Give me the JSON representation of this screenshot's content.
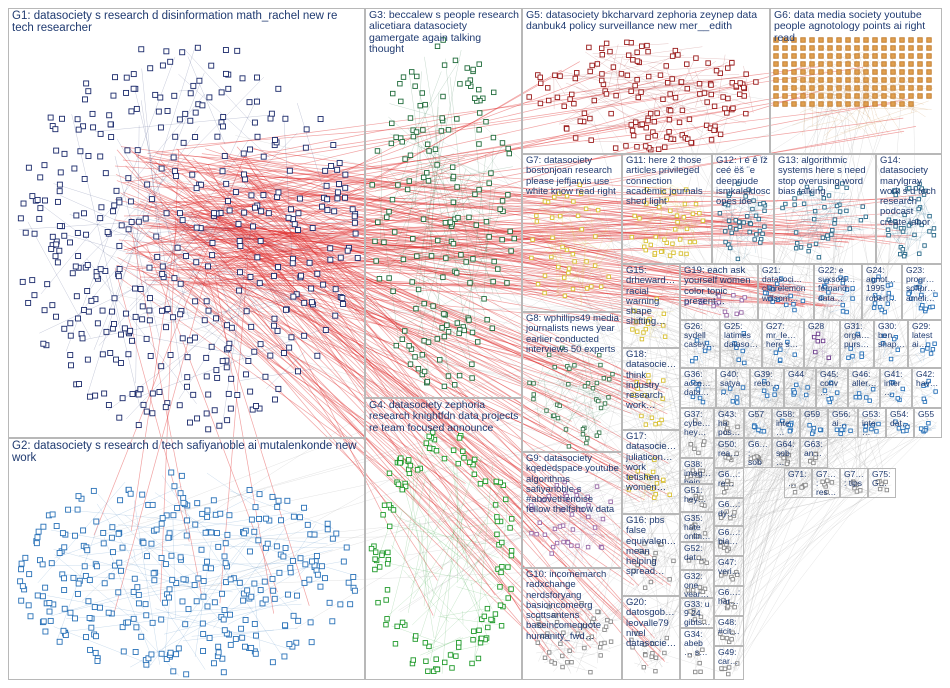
{
  "groups": [
    {
      "id": "G1",
      "label": "G1: datasociety s research d disinformation math_rachel new re tech researcher",
      "color": "#1b2a6b"
    },
    {
      "id": "G2",
      "label": "G2: datasociety s research d tech safiyanoble ai mutalenkonde new work",
      "color": "#2a72b8"
    },
    {
      "id": "G3",
      "label": "G3: beccalew s people research alicetiara datasociety gamergate again talking thought",
      "color": "#1f6b3a"
    },
    {
      "id": "G4",
      "label": "G4: datasociety zephoria research knightfdn data projects re team focused announce",
      "color": "#1f9a2a"
    },
    {
      "id": "G5",
      "label": "G5: datasociety bkcharvard zephoria zeynep data danbuk4 policy surveillance new mer__edith",
      "color": "#9a1a1a"
    },
    {
      "id": "G6",
      "label": "G6: data media society youtube people agnotology points ai right read",
      "color": "#c07a2a"
    },
    {
      "id": "G7",
      "label": "G7: datasociety bostonjoan research please jeffjarvis use white know read right",
      "color": "#d8c030"
    },
    {
      "id": "G8",
      "label": "G8: wphillips49 media journalists news year earlier conducted interviews 50 experts",
      "color": "#3a7a50"
    },
    {
      "id": "G9",
      "label": "G9: datasociety kqededspace youtube algorithms safiyanoble s #abovethenoise fellow thelfshow data",
      "color": "#9a6aa8"
    },
    {
      "id": "G10",
      "label": "G10: incomemarch radxchange nerdsforyang basicincomeorg scottsantens baseincomequote humanity_fwd…",
      "color": "#8a8a8a"
    },
    {
      "id": "G11",
      "label": "G11: here 2 those articles privileged connection academic journals shed light",
      "color": "#d8c030"
    },
    {
      "id": "G12",
      "label": "G12: ì é ê ĭž ceé ëš ¨e deepriude ismkaleidoscopes ioe",
      "color": "#2a6a8a"
    },
    {
      "id": "G13",
      "label": "G13: algorithmic systems here s need stop overusing word bias talking",
      "color": "#2a6a8a"
    },
    {
      "id": "G14",
      "label": "G14: datasociety marylgray work s d tech research podcast create labor",
      "color": "#2a6a8a"
    },
    {
      "id": "G15",
      "label": "G15: drheward… racial warning shape shifting…",
      "color": "#d8c030"
    },
    {
      "id": "G16",
      "label": "G16: pbs false equivalen… mean helping spread…",
      "color": "#8a8a8a"
    },
    {
      "id": "G17",
      "label": "G17: datasocie… juliaticon… work tetishen women…",
      "color": "#d8c030"
    },
    {
      "id": "G18",
      "label": "G18: datasocie… think industry research work…",
      "color": "#d8c030"
    },
    {
      "id": "G19",
      "label": "G19: each ask yourself women color topic present…",
      "color": "#9a6aa8"
    },
    {
      "id": "G20",
      "label": "G20: datosgob… leovalle79 nivel datasocie…",
      "color": "#8a8a8a"
    },
    {
      "id": "G21",
      "label": "G21: datasoci… clairelemon willsom…",
      "color": "#2a72b8"
    },
    {
      "id": "G22",
      "label": "G22: e suxsoni… fernand… data…",
      "color": "#2a72b8"
    },
    {
      "id": "G23",
      "label": "G23: progr… softpr… ameli…",
      "color": "#2a72b8"
    },
    {
      "id": "G24",
      "label": "G24: agnot… 1995 robert…",
      "color": "#2a72b8"
    },
    {
      "id": "G25",
      "label": "G25: latimes dataso…",
      "color": "#2a72b8"
    },
    {
      "id": "G26",
      "label": "G26: sydell casey…",
      "color": "#2a72b8"
    },
    {
      "id": "G27",
      "label": "G27: mr_le… here s…",
      "color": "#2a72b8"
    },
    {
      "id": "G28",
      "label": "G28",
      "color": "#6a3a8a"
    },
    {
      "id": "G29",
      "label": "G29: latest ai…",
      "color": "#2a72b8"
    },
    {
      "id": "G30",
      "label": "G30: ben shap…",
      "color": "#2a72b8"
    },
    {
      "id": "G31",
      "label": "G31: orga… purs…",
      "color": "#2a72b8"
    },
    {
      "id": "G32",
      "label": "G32: one year…",
      "color": "#8a8a8a"
    },
    {
      "id": "G33",
      "label": "G33: u 9 24 gibts…",
      "color": "#8a8a8a"
    },
    {
      "id": "G34",
      "label": "G34: abeb… s…",
      "color": "#8a8a8a"
    },
    {
      "id": "G35",
      "label": "G35: hate onlin…",
      "color": "#8a8a8a"
    },
    {
      "id": "G36",
      "label": "G36: acce… data…",
      "color": "#2a72b8"
    },
    {
      "id": "G37",
      "label": "G37: cybe… hey…",
      "color": "#8a8a8a"
    },
    {
      "id": "G38",
      "label": "G38: imag… bein…",
      "color": "#8a8a8a"
    },
    {
      "id": "G39",
      "label": "G39: reco…",
      "color": "#2a72b8"
    },
    {
      "id": "G40",
      "label": "G40: satya…",
      "color": "#2a72b8"
    },
    {
      "id": "G41",
      "label": "G41: inter…",
      "color": "#2a72b8"
    },
    {
      "id": "G42",
      "label": "G42: hav…",
      "color": "#2a72b8"
    },
    {
      "id": "G43",
      "label": "G43: ha pos…",
      "color": "#8a8a8a"
    },
    {
      "id": "G44",
      "label": "G44",
      "color": "#2a72b8"
    },
    {
      "id": "G45",
      "label": "G45: conv…",
      "color": "#2a72b8"
    },
    {
      "id": "G46",
      "label": "G46: aller…",
      "color": "#2a72b8"
    },
    {
      "id": "G47",
      "label": "G47: veri…",
      "color": "#8a8a8a"
    },
    {
      "id": "G48",
      "label": "G48: #cit…",
      "color": "#8a8a8a"
    },
    {
      "id": "G49",
      "label": "G49: car…",
      "color": "#8a8a8a"
    },
    {
      "id": "G50",
      "label": "G50: rea…",
      "color": "#8a8a8a"
    },
    {
      "id": "G51",
      "label": "G51: hey…",
      "color": "#8a8a8a"
    },
    {
      "id": "G52",
      "label": "G52: dat…",
      "color": "#8a8a8a"
    },
    {
      "id": "G53",
      "label": "G53: inte…",
      "color": "#2a72b8"
    },
    {
      "id": "G54",
      "label": "G54: dat…",
      "color": "#2a72b8"
    },
    {
      "id": "G55",
      "label": "G55",
      "color": "#2a72b8"
    },
    {
      "id": "G56",
      "label": "G56: ai…",
      "color": "#2a72b8"
    },
    {
      "id": "G57",
      "label": "G57",
      "color": "#2a72b8"
    },
    {
      "id": "G58",
      "label": "G58: inte…",
      "color": "#2a72b8"
    },
    {
      "id": "G59",
      "label": "G59",
      "color": "#2a72b8"
    },
    {
      "id": "G60",
      "label": "G6…: sob…",
      "color": "#8a8a8a"
    },
    {
      "id": "G61",
      "label": "G6…: re…",
      "color": "#8a8a8a"
    },
    {
      "id": "G62",
      "label": "G6…: dy…",
      "color": "#8a8a8a"
    },
    {
      "id": "G63",
      "label": "G63: an…",
      "color": "#8a8a8a"
    },
    {
      "id": "G64",
      "label": "G64: sob…",
      "color": "#8a8a8a"
    },
    {
      "id": "G65",
      "label": "G6…: bia…",
      "color": "#8a8a8a"
    },
    {
      "id": "G66",
      "label": "G6…: har…",
      "color": "#8a8a8a"
    },
    {
      "id": "G67",
      "label": "G7…: res…",
      "color": "#8a8a8a"
    },
    {
      "id": "G68",
      "label": "G7…: tips",
      "color": "#8a8a8a"
    },
    {
      "id": "G69",
      "label": "G7…: sw…",
      "color": "#8a8a8a"
    },
    {
      "id": "G70",
      "label": "G75: G…",
      "color": "#8a8a8a"
    },
    {
      "id": "G71",
      "label": "G71: …",
      "color": "#8a8a8a"
    }
  ]
}
